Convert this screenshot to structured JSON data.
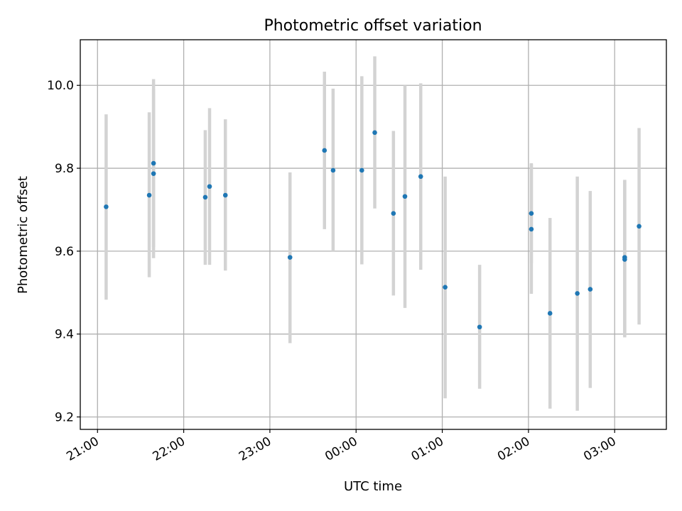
{
  "chart_data": {
    "type": "scatter",
    "title": "Photometric offset variation",
    "xlabel": "UTC time",
    "ylabel": "Photometric offset",
    "x_tick_labels": [
      "21:00",
      "22:00",
      "23:00",
      "00:00",
      "01:00",
      "02:00",
      "03:00"
    ],
    "y_tick_labels": [
      "9.2",
      "9.4",
      "9.6",
      "9.8",
      "10.0"
    ],
    "y_ticks": [
      9.2,
      9.4,
      9.6,
      9.8,
      10.0
    ],
    "xlim": [
      "20:48",
      "03:36"
    ],
    "ylim": [
      9.17,
      10.11
    ],
    "grid": true,
    "colors": {
      "point": "#1f77b4",
      "errorbar": "#d3d3d3"
    },
    "series": [
      {
        "points": [
          {
            "t": "21:06",
            "y": 9.707,
            "lo": 9.483,
            "hi": 9.93
          },
          {
            "t": "21:36",
            "y": 9.735,
            "lo": 9.537,
            "hi": 9.935
          },
          {
            "t": "21:39",
            "y": 9.787,
            "lo": 9.583,
            "hi": 10.015
          },
          {
            "t": "21:39",
            "y": 9.812,
            "lo": 9.61,
            "hi": 9.99
          },
          {
            "t": "22:15",
            "y": 9.73,
            "lo": 9.567,
            "hi": 9.892
          },
          {
            "t": "22:18",
            "y": 9.756,
            "lo": 9.567,
            "hi": 9.945
          },
          {
            "t": "22:29",
            "y": 9.735,
            "lo": 9.553,
            "hi": 9.918
          },
          {
            "t": "23:14",
            "y": 9.585,
            "lo": 9.378,
            "hi": 9.79
          },
          {
            "t": "23:38",
            "y": 9.843,
            "lo": 9.653,
            "hi": 10.033
          },
          {
            "t": "23:44",
            "y": 9.795,
            "lo": 9.6,
            "hi": 9.992
          },
          {
            "t": "00:04",
            "y": 9.795,
            "lo": 9.568,
            "hi": 10.022
          },
          {
            "t": "00:13",
            "y": 9.886,
            "lo": 9.703,
            "hi": 10.07
          },
          {
            "t": "00:26",
            "y": 9.691,
            "lo": 9.493,
            "hi": 9.89
          },
          {
            "t": "00:34",
            "y": 9.732,
            "lo": 9.463,
            "hi": 10.0
          },
          {
            "t": "00:45",
            "y": 9.78,
            "lo": 9.555,
            "hi": 10.005
          },
          {
            "t": "01:02",
            "y": 9.513,
            "lo": 9.245,
            "hi": 9.78
          },
          {
            "t": "01:26",
            "y": 9.417,
            "lo": 9.268,
            "hi": 9.567
          },
          {
            "t": "02:02",
            "y": 9.653,
            "lo": 9.497,
            "hi": 9.81
          },
          {
            "t": "02:02",
            "y": 9.691,
            "lo": 9.57,
            "hi": 9.812
          },
          {
            "t": "02:15",
            "y": 9.45,
            "lo": 9.22,
            "hi": 9.68
          },
          {
            "t": "02:34",
            "y": 9.498,
            "lo": 9.215,
            "hi": 9.78
          },
          {
            "t": "02:43",
            "y": 9.508,
            "lo": 9.27,
            "hi": 9.745
          },
          {
            "t": "03:07",
            "y": 9.585,
            "lo": 9.395,
            "hi": 9.772
          },
          {
            "t": "03:07",
            "y": 9.58,
            "lo": 9.392,
            "hi": 9.77
          },
          {
            "t": "03:17",
            "y": 9.66,
            "lo": 9.423,
            "hi": 9.897
          }
        ]
      }
    ]
  }
}
